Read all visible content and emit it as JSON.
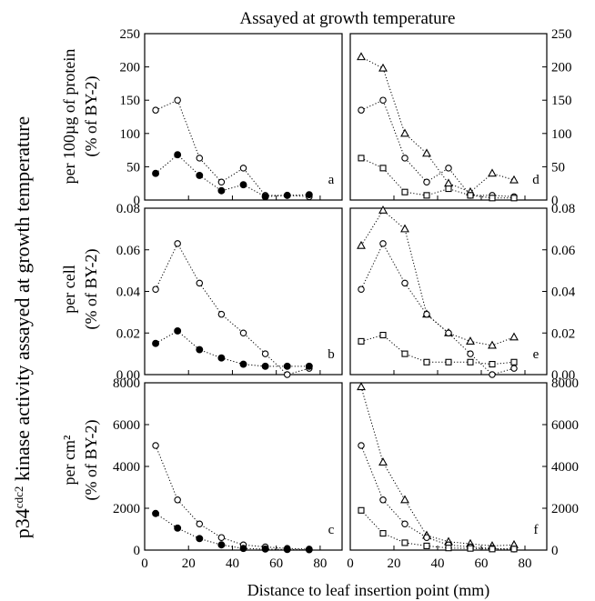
{
  "figure": {
    "top_title": "Assayed at  growth temperature",
    "y_main_label": "p34",
    "y_main_sup": "cdc2",
    "y_main_rest": " kinase activity assayed at growth temperature",
    "x_label": "Distance to leaf insertion point (mm)",
    "row_labels": [
      {
        "line1": "per 100µg of protein",
        "line2": "(% of BY-2)"
      },
      {
        "line1": "per cell",
        "line2": "(% of BY-2)"
      },
      {
        "line1": "per cm²",
        "line2": "(% of BY-2)"
      }
    ]
  },
  "chart_data": [
    {
      "panel": "a",
      "type": "line",
      "xlim": [
        0,
        90
      ],
      "ylim": [
        0,
        250
      ],
      "xticks": [
        0,
        20,
        40,
        60,
        80
      ],
      "yticks": [
        0,
        50,
        100,
        150,
        200,
        250
      ],
      "ytick_labels": [
        "0",
        "50",
        "100",
        "150",
        "200",
        "250"
      ],
      "series": [
        {
          "marker": "open-circle",
          "x": [
            5,
            15,
            25,
            35,
            45,
            55,
            65,
            75
          ],
          "values": [
            135,
            150,
            63,
            27,
            48,
            7,
            7,
            5
          ]
        },
        {
          "marker": "filled-circle",
          "x": [
            5,
            15,
            25,
            35,
            45,
            55,
            65,
            75
          ],
          "values": [
            40,
            68,
            37,
            14,
            23,
            5,
            7,
            8
          ]
        }
      ]
    },
    {
      "panel": "b",
      "type": "line",
      "xlim": [
        0,
        90
      ],
      "ylim": [
        0,
        0.08
      ],
      "xticks": [
        0,
        20,
        40,
        60,
        80
      ],
      "yticks": [
        0,
        0.02,
        0.04,
        0.06,
        0.08
      ],
      "ytick_labels": [
        "0.00",
        "0.02",
        "0.04",
        "0.06",
        "0.08"
      ],
      "series": [
        {
          "marker": "open-circle",
          "x": [
            5,
            15,
            25,
            35,
            45,
            55,
            65,
            75
          ],
          "values": [
            0.041,
            0.063,
            0.044,
            0.029,
            0.02,
            0.01,
            0.0,
            0.003
          ]
        },
        {
          "marker": "filled-circle",
          "x": [
            5,
            15,
            25,
            35,
            45,
            55,
            65,
            75
          ],
          "values": [
            0.015,
            0.021,
            0.012,
            0.008,
            0.005,
            0.004,
            0.004,
            0.004
          ]
        }
      ]
    },
    {
      "panel": "c",
      "type": "line",
      "xlim": [
        0,
        90
      ],
      "ylim": [
        0,
        8000
      ],
      "xticks": [
        0,
        20,
        40,
        60,
        80
      ],
      "yticks": [
        0,
        2000,
        4000,
        6000,
        8000
      ],
      "ytick_labels": [
        "0",
        "2000",
        "4000",
        "6000",
        "8000"
      ],
      "series": [
        {
          "marker": "open-circle",
          "x": [
            5,
            15,
            25,
            35,
            45,
            55,
            65,
            75
          ],
          "values": [
            5000,
            2400,
            1250,
            600,
            250,
            150,
            80,
            50
          ]
        },
        {
          "marker": "filled-circle",
          "x": [
            5,
            15,
            25,
            35,
            45,
            55,
            65,
            75
          ],
          "values": [
            1750,
            1050,
            550,
            250,
            80,
            50,
            30,
            20
          ]
        }
      ]
    },
    {
      "panel": "d",
      "type": "line",
      "xlim": [
        0,
        90
      ],
      "ylim": [
        0,
        250
      ],
      "xticks": [
        0,
        20,
        40,
        60,
        80
      ],
      "yticks": [
        0,
        50,
        100,
        150,
        200,
        250
      ],
      "ytick_labels": [
        "0",
        "50",
        "100",
        "150",
        "200",
        "250"
      ],
      "series": [
        {
          "marker": "open-triangle",
          "x": [
            5,
            15,
            25,
            35,
            45,
            55,
            65,
            75
          ],
          "values": [
            215,
            198,
            100,
            70,
            25,
            12,
            40,
            30
          ]
        },
        {
          "marker": "open-circle",
          "x": [
            5,
            15,
            25,
            35,
            45,
            55,
            65,
            75
          ],
          "values": [
            135,
            150,
            63,
            27,
            48,
            7,
            7,
            5
          ]
        },
        {
          "marker": "open-square",
          "x": [
            5,
            15,
            25,
            35,
            45,
            55,
            65,
            75
          ],
          "values": [
            63,
            48,
            12,
            7,
            17,
            7,
            3,
            3
          ]
        }
      ]
    },
    {
      "panel": "e",
      "type": "line",
      "xlim": [
        0,
        90
      ],
      "ylim": [
        0,
        0.08
      ],
      "xticks": [
        0,
        20,
        40,
        60,
        80
      ],
      "yticks": [
        0,
        0.02,
        0.04,
        0.06,
        0.08
      ],
      "ytick_labels": [
        "0.00",
        "0.02",
        "0.04",
        "0.06",
        "0.08"
      ],
      "series": [
        {
          "marker": "open-triangle",
          "x": [
            5,
            15,
            25,
            35,
            45,
            55,
            65,
            75
          ],
          "values": [
            0.062,
            0.079,
            0.07,
            0.029,
            0.02,
            0.016,
            0.014,
            0.018
          ]
        },
        {
          "marker": "open-circle",
          "x": [
            5,
            15,
            25,
            35,
            45,
            55,
            65,
            75
          ],
          "values": [
            0.041,
            0.063,
            0.044,
            0.029,
            0.02,
            0.01,
            0.0,
            0.003
          ]
        },
        {
          "marker": "open-square",
          "x": [
            5,
            15,
            25,
            35,
            45,
            55,
            65,
            75
          ],
          "values": [
            0.016,
            0.019,
            0.01,
            0.006,
            0.006,
            0.006,
            0.005,
            0.006
          ]
        }
      ]
    },
    {
      "panel": "f",
      "type": "line",
      "xlim": [
        0,
        90
      ],
      "ylim": [
        0,
        8000
      ],
      "xticks": [
        0,
        20,
        40,
        60,
        80
      ],
      "yticks": [
        0,
        2000,
        4000,
        6000,
        8000
      ],
      "ytick_labels": [
        "0",
        "2000",
        "4000",
        "6000",
        "8000"
      ],
      "series": [
        {
          "marker": "open-triangle",
          "x": [
            5,
            15,
            25,
            35,
            45,
            55,
            65,
            75
          ],
          "values": [
            7800,
            4200,
            2400,
            700,
            400,
            300,
            200,
            250
          ]
        },
        {
          "marker": "open-circle",
          "x": [
            5,
            15,
            25,
            35,
            45,
            55,
            65,
            75
          ],
          "values": [
            5000,
            2400,
            1250,
            600,
            250,
            150,
            80,
            50
          ]
        },
        {
          "marker": "open-square",
          "x": [
            5,
            15,
            25,
            35,
            45,
            55,
            65,
            75
          ],
          "values": [
            1900,
            800,
            350,
            200,
            100,
            80,
            50,
            50
          ]
        }
      ]
    }
  ]
}
